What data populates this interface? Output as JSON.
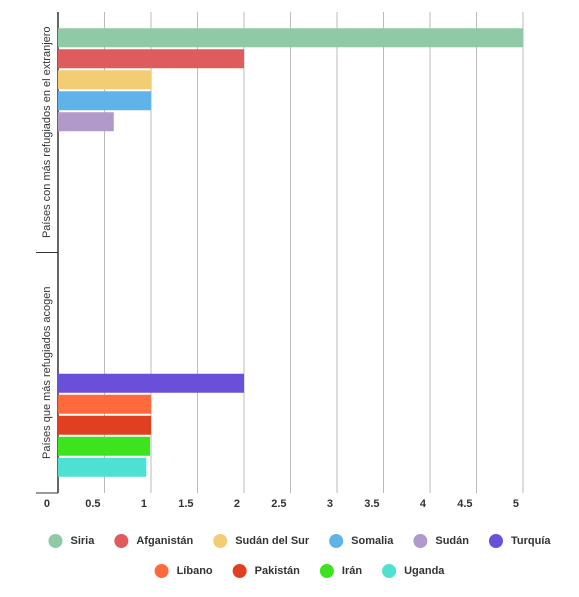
{
  "chart_data": {
    "type": "bar",
    "orientation": "horizontal",
    "categories": [
      "Países con más refugiados en el extranjero",
      "Países que más refugiados acogen"
    ],
    "series": [
      {
        "name": "Siria",
        "color": "#8fc9a6",
        "values": [
          5.0,
          null
        ]
      },
      {
        "name": "Afganistán",
        "color": "#e05c5c",
        "values": [
          2.0,
          null
        ]
      },
      {
        "name": "Sudán del Sur",
        "color": "#f2cd74",
        "values": [
          1.0,
          null
        ]
      },
      {
        "name": "Somalia",
        "color": "#5fb3e8",
        "values": [
          1.0,
          null
        ]
      },
      {
        "name": "Sudán",
        "color": "#b19ac9",
        "values": [
          0.6,
          null
        ]
      },
      {
        "name": "Turquía",
        "color": "#6a4fd9",
        "values": [
          null,
          2.0
        ]
      },
      {
        "name": "Líbano",
        "color": "#ff6a3d",
        "values": [
          null,
          1.0
        ]
      },
      {
        "name": "Pakistán",
        "color": "#e04020",
        "values": [
          null,
          1.0
        ]
      },
      {
        "name": "Irán",
        "color": "#3de31e",
        "values": [
          null,
          0.99
        ]
      },
      {
        "name": "Uganda",
        "color": "#4ee0d0",
        "values": [
          null,
          0.95
        ]
      }
    ],
    "xlim": [
      0,
      5
    ],
    "xticks": [
      0,
      0.5,
      1,
      1.5,
      2,
      2.5,
      3,
      3.5,
      4,
      4.5,
      5
    ],
    "grid": true
  }
}
